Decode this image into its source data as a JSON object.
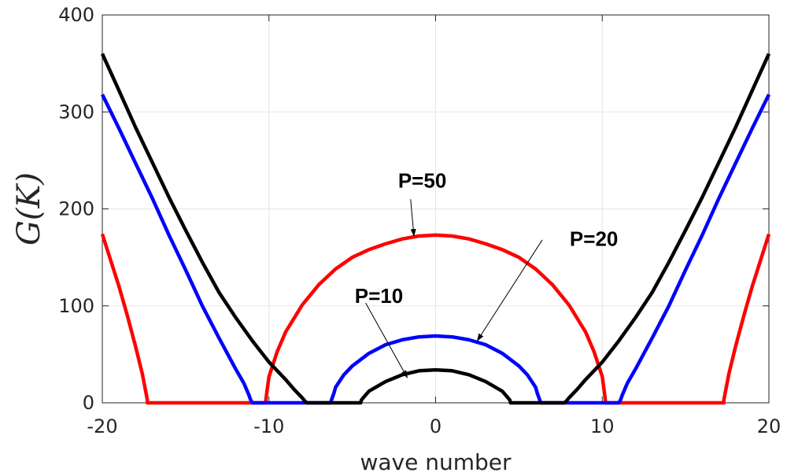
{
  "chart_data": {
    "type": "line",
    "title": "",
    "xlabel": "wave number",
    "ylabel": "G(K)",
    "xlim": [
      -20,
      20
    ],
    "ylim": [
      0,
      400
    ],
    "xticks": [
      -20,
      -10,
      0,
      10,
      20
    ],
    "yticks": [
      0,
      100,
      200,
      300,
      400
    ],
    "grid": true,
    "series": [
      {
        "name": "P=50",
        "color": "#ff0000",
        "x": [
          -20,
          -19.5,
          -19,
          -18.5,
          -18,
          -17.6,
          -17.4,
          -17.3,
          -17.3,
          -12,
          -10.2,
          -10.15,
          -10,
          -9.5,
          -9,
          -8,
          -7,
          -6,
          -5,
          -4,
          -3,
          -2,
          -1,
          0,
          1,
          2,
          3,
          4,
          5,
          6,
          7,
          8,
          9,
          9.5,
          10,
          10.15,
          10.2,
          12,
          17.3,
          17.3,
          17.4,
          17.6,
          18,
          18.5,
          19,
          19.5,
          20
        ],
        "y": [
          174,
          147,
          120,
          90,
          58,
          30,
          12,
          3,
          0,
          0,
          0,
          8,
          27,
          53,
          73,
          101,
          122,
          138,
          150,
          158,
          164,
          169,
          172,
          173,
          172,
          169,
          164,
          158,
          150,
          138,
          122,
          101,
          73,
          53,
          27,
          8,
          0,
          0,
          0,
          3,
          12,
          30,
          58,
          90,
          120,
          147,
          174
        ]
      },
      {
        "name": "P=20",
        "color": "#0000ff",
        "x": [
          -20,
          -19,
          -18,
          -17,
          -16,
          -15,
          -14,
          -13,
          -12,
          -11.5,
          -11.2,
          -11.1,
          -11.0,
          -6.3,
          -6.25,
          -6.1,
          -6,
          -5.5,
          -5,
          -4,
          -3,
          -2,
          -1,
          0,
          1,
          2,
          3,
          4,
          5,
          5.5,
          6,
          6.1,
          6.25,
          6.3,
          11.0,
          11.1,
          11.2,
          11.5,
          12,
          13,
          14,
          15,
          16,
          17,
          18,
          19,
          20
        ],
        "y": [
          318,
          283,
          247,
          211,
          173,
          137,
          100,
          67,
          35,
          20,
          8,
          3,
          0,
          0,
          3,
          10,
          16,
          29,
          38,
          51,
          60,
          65,
          68,
          69,
          68,
          65,
          60,
          51,
          38,
          29,
          16,
          10,
          3,
          0,
          0,
          3,
          8,
          20,
          35,
          67,
          100,
          137,
          173,
          211,
          247,
          283,
          318
        ]
      },
      {
        "name": "P=10",
        "color": "#000000",
        "x": [
          -20,
          -19,
          -18,
          -17,
          -16,
          -15,
          -14,
          -13,
          -12,
          -11,
          -10,
          -9,
          -8.5,
          -8,
          -7.8,
          -7.7,
          -4.5,
          -4.45,
          -4.3,
          -4,
          -3,
          -2,
          -1,
          0,
          1,
          2,
          3,
          4,
          4.3,
          4.45,
          4.5,
          7.7,
          7.8,
          8,
          8.5,
          9,
          10,
          11,
          12,
          13,
          14,
          15,
          16,
          17,
          18,
          19,
          20
        ],
        "y": [
          360,
          322,
          284,
          248,
          212,
          178,
          145,
          114,
          88,
          64,
          42,
          24,
          14,
          5,
          1,
          0,
          0,
          3,
          6,
          12,
          22,
          29,
          33,
          34,
          33,
          29,
          22,
          12,
          6,
          3,
          0,
          0,
          1,
          5,
          14,
          24,
          42,
          64,
          88,
          114,
          145,
          178,
          212,
          248,
          284,
          322,
          360
        ]
      }
    ],
    "annotations": [
      {
        "text": "P=50",
        "text_x": -0.8,
        "text_y": 222,
        "arrow_from_x": -1.5,
        "arrow_from_y": 210,
        "arrow_to_x": -1.3,
        "arrow_to_y": 172
      },
      {
        "text": "P=20",
        "text_x": 9.5,
        "text_y": 162,
        "arrow_from_x": 6.4,
        "arrow_from_y": 168,
        "arrow_to_x": 2.5,
        "arrow_to_y": 64
      },
      {
        "text": "P=10",
        "text_x": -3.4,
        "text_y": 103,
        "arrow_from_x": -4.2,
        "arrow_from_y": 103,
        "arrow_to_x": -1.7,
        "arrow_to_y": 26
      }
    ]
  }
}
